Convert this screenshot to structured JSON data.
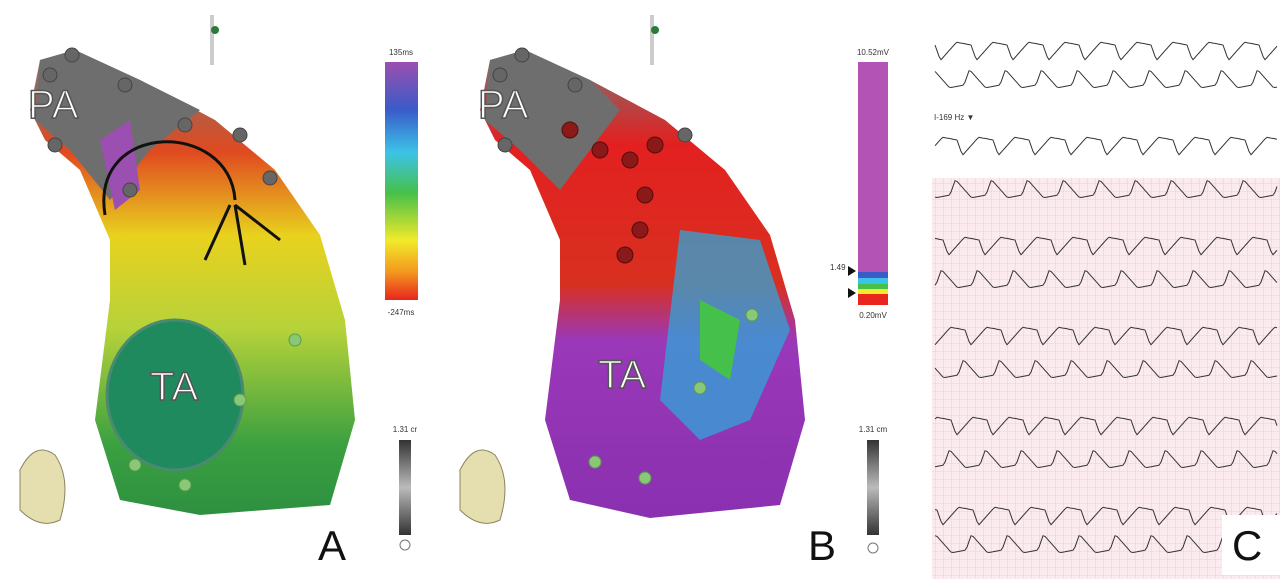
{
  "panels": [
    {
      "letter": "A",
      "labels": [
        "PA",
        "TA"
      ],
      "colorbar": {
        "top": "135ms",
        "bottom": "-247ms"
      },
      "scale": "1.31 cr"
    },
    {
      "letter": "B",
      "labels": [
        "PA",
        "TA"
      ],
      "colorbar": {
        "top": "10.52mV",
        "marker": "1.49",
        "bottom": "0.20mV"
      },
      "scale": "1.31 cm"
    },
    {
      "letter": "C",
      "ecg_note": "I-169 Hz ▼"
    }
  ]
}
